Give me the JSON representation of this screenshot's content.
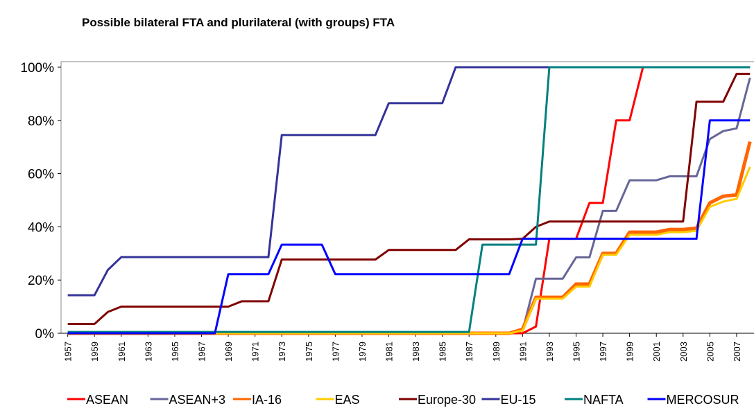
{
  "chart_data": {
    "type": "line",
    "title": "Possible bilateral FTA and plurilateral (with groups) FTA",
    "x": [
      1957,
      1958,
      1959,
      1960,
      1961,
      1962,
      1963,
      1964,
      1965,
      1966,
      1967,
      1968,
      1969,
      1970,
      1971,
      1972,
      1973,
      1974,
      1975,
      1976,
      1977,
      1978,
      1979,
      1980,
      1981,
      1982,
      1983,
      1984,
      1985,
      1986,
      1987,
      1988,
      1989,
      1990,
      1991,
      1992,
      1993,
      1994,
      1995,
      1996,
      1997,
      1998,
      1999,
      2000,
      2001,
      2002,
      2003,
      2004,
      2005,
      2006,
      2007,
      2008
    ],
    "xlim": [
      1956.5,
      2008.3
    ],
    "xticks": [
      1957,
      1959,
      1961,
      1963,
      1965,
      1967,
      1969,
      1971,
      1973,
      1975,
      1977,
      1979,
      1981,
      1983,
      1985,
      1987,
      1989,
      1991,
      1993,
      1995,
      1997,
      1999,
      2001,
      2003,
      2005,
      2007
    ],
    "ylim": [
      0,
      100
    ],
    "yticks": [
      {
        "value": 0,
        "label": "0%"
      },
      {
        "value": 20,
        "label": "20%"
      },
      {
        "value": 40,
        "label": "40%"
      },
      {
        "value": 60,
        "label": "60%"
      },
      {
        "value": 80,
        "label": "80%"
      },
      {
        "value": 100,
        "label": "100%"
      }
    ],
    "grid": false,
    "legend": "bottom",
    "series": [
      {
        "name": "ASEAN",
        "color": "#ff0000",
        "width": 3,
        "values": [
          0,
          0,
          0,
          0,
          0,
          0,
          0,
          0,
          0,
          0,
          0,
          0,
          0,
          0,
          0,
          0,
          0,
          0,
          0,
          0,
          0,
          0,
          0,
          0,
          0,
          0,
          0,
          0,
          0,
          0,
          0,
          0,
          0,
          0,
          0,
          2.5,
          35.5,
          35.5,
          35.5,
          49,
          49,
          80,
          80,
          100,
          100,
          100,
          100,
          100,
          100,
          100,
          100,
          100
        ]
      },
      {
        "name": "ASEAN+3",
        "color": "#666699",
        "width": 3,
        "values": [
          0,
          0,
          0,
          0,
          0,
          0,
          0,
          0,
          0,
          0,
          0,
          0,
          0,
          0,
          0,
          0,
          0,
          0,
          0,
          0,
          0,
          0,
          0,
          0,
          0,
          0,
          0,
          0,
          0,
          0,
          0,
          0,
          0,
          0,
          1,
          20.5,
          20.5,
          20.5,
          28.5,
          28.5,
          46,
          46,
          57.5,
          57.5,
          57.5,
          59,
          59,
          59,
          73,
          76,
          77,
          96
        ]
      },
      {
        "name": "IA-16",
        "color": "#ff6600",
        "width": 5,
        "values": [
          0,
          0,
          0,
          0,
          0,
          0,
          0,
          0,
          0,
          0,
          0,
          0,
          0,
          0,
          0,
          0,
          0,
          0,
          0,
          0,
          0,
          0,
          0,
          0,
          0,
          0,
          0,
          0,
          0,
          0,
          0,
          0,
          0,
          0,
          1.5,
          13.5,
          13.5,
          13.5,
          18.5,
          18.5,
          30,
          30,
          38,
          38,
          38,
          39,
          39,
          39.5,
          49,
          51.5,
          52,
          72
        ]
      },
      {
        "name": "EAS",
        "color": "#ffcc00",
        "width": 3,
        "values": [
          0,
          0,
          0,
          0,
          0,
          0,
          0,
          0,
          0,
          0,
          0,
          0,
          0,
          0,
          0,
          0,
          0,
          0,
          0,
          0,
          0,
          0,
          0,
          0,
          0,
          0,
          0,
          0,
          0,
          0,
          0,
          0,
          0,
          0,
          1,
          13,
          13,
          13,
          17.5,
          17.5,
          29.5,
          29.5,
          37,
          37,
          37,
          38,
          38,
          38.5,
          47.5,
          49.5,
          50.5,
          62.5
        ]
      },
      {
        "name": "Europe-30",
        "color": "#800000",
        "width": 3,
        "values": [
          3.5,
          3.5,
          3.5,
          8,
          10,
          10,
          10,
          10,
          10,
          10,
          10,
          10,
          10,
          12,
          12,
          12,
          27.7,
          27.7,
          27.7,
          27.7,
          27.7,
          27.7,
          27.7,
          27.7,
          31.3,
          31.3,
          31.3,
          31.3,
          31.3,
          31.3,
          35.3,
          35.3,
          35.3,
          35.3,
          35.5,
          40,
          42,
          42,
          42,
          42,
          42,
          42,
          42,
          42,
          42,
          42,
          42,
          87,
          87,
          87,
          97.5,
          97.5
        ]
      },
      {
        "name": "EU-15",
        "color": "#333399",
        "width": 3,
        "values": [
          14.3,
          14.3,
          14.3,
          23.8,
          28.6,
          28.6,
          28.6,
          28.6,
          28.6,
          28.6,
          28.6,
          28.6,
          28.6,
          28.6,
          28.6,
          28.6,
          74.5,
          74.5,
          74.5,
          74.5,
          74.5,
          74.5,
          74.5,
          74.5,
          86.5,
          86.5,
          86.5,
          86.5,
          86.5,
          100,
          100,
          100,
          100,
          100,
          100,
          100,
          100,
          100,
          100,
          100,
          100,
          100,
          100,
          100,
          100,
          100,
          100,
          100,
          100,
          100,
          100,
          100
        ]
      },
      {
        "name": "NAFTA",
        "color": "#008080",
        "width": 3,
        "values": [
          0.5,
          0.5,
          0.5,
          0.5,
          0.5,
          0.5,
          0.5,
          0.5,
          0.5,
          0.5,
          0.5,
          0.5,
          0.5,
          0.5,
          0.5,
          0.5,
          0.5,
          0.5,
          0.5,
          0.5,
          0.5,
          0.5,
          0.5,
          0.5,
          0.5,
          0.5,
          0.5,
          0.5,
          0.5,
          0.5,
          0.5,
          33.3,
          33.3,
          33.3,
          33.3,
          33.3,
          100,
          100,
          100,
          100,
          100,
          100,
          100,
          100,
          100,
          100,
          100,
          100,
          100,
          100,
          100,
          100
        ]
      },
      {
        "name": "MERCOSUR",
        "color": "#0000ff",
        "width": 3,
        "values": [
          0,
          0,
          0,
          0,
          0,
          0,
          0,
          0,
          0,
          0,
          0,
          0,
          22.2,
          22.2,
          22.2,
          22.2,
          33.3,
          33.3,
          33.3,
          33.3,
          22.2,
          22.2,
          22.2,
          22.2,
          22.2,
          22.2,
          22.2,
          22.2,
          22.2,
          22.2,
          22.2,
          22.2,
          22.2,
          22.2,
          35.5,
          35.5,
          35.5,
          35.5,
          35.5,
          35.5,
          35.5,
          35.5,
          35.5,
          35.5,
          35.5,
          35.5,
          35.5,
          35.5,
          80,
          80,
          80,
          80
        ]
      }
    ]
  }
}
